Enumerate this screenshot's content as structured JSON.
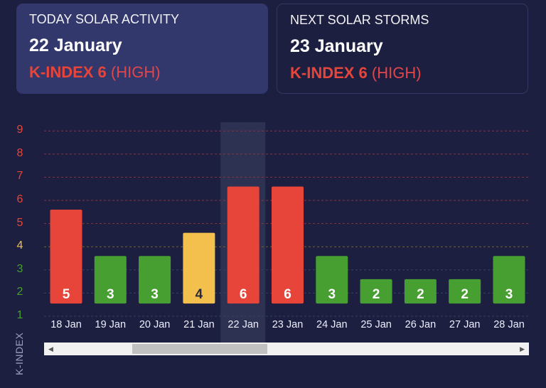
{
  "today": {
    "title": "TODAY SOLAR ACTIVITY",
    "date": "22 January",
    "kindex": "K-INDEX 6",
    "level": "(HIGH)"
  },
  "next": {
    "title": "NEXT SOLAR STORMS",
    "date": "23 January",
    "kindex": "K-INDEX 6",
    "level": "(HIGH)"
  },
  "colors": {
    "high": "#e8453a",
    "medium": "#f3c04e",
    "low": "#479e31",
    "bg": "#1c1f40"
  },
  "chart_data": {
    "type": "bar",
    "categories": [
      "18 Jan",
      "19 Jan",
      "20 Jan",
      "21 Jan",
      "22 Jan",
      "23 Jan",
      "24 Jan",
      "25 Jan",
      "26 Jan",
      "27 Jan",
      "28 Jan"
    ],
    "values": [
      5,
      3,
      3,
      4,
      6,
      6,
      3,
      2,
      2,
      2,
      3
    ],
    "ylabel": "K-INDEX",
    "yticks": [
      1,
      2,
      3,
      4,
      5,
      6,
      7,
      8,
      9
    ],
    "ylim": [
      1,
      9
    ],
    "highlighted": "22 Jan",
    "grid": true
  }
}
